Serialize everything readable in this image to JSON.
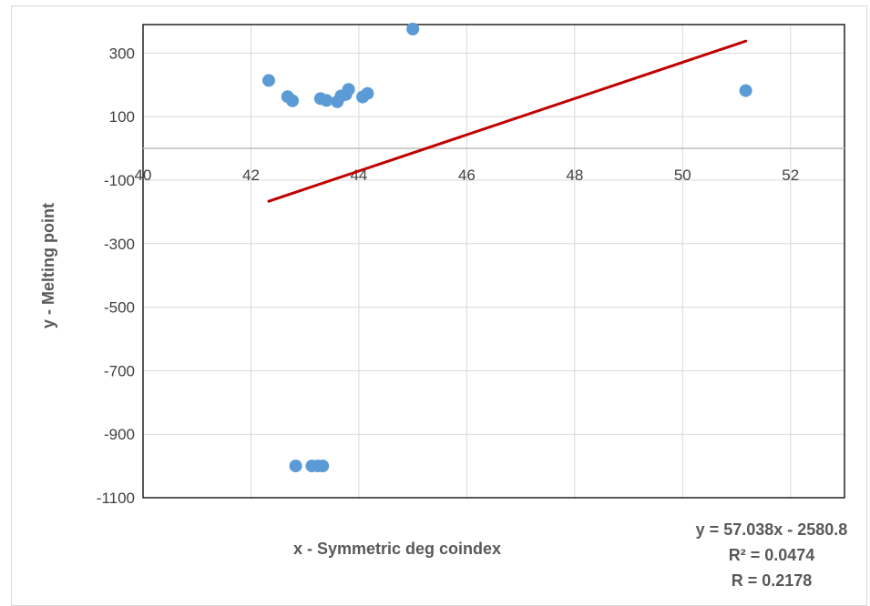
{
  "chart_data": {
    "type": "scatter",
    "xlabel": "x - Symmetric deg coindex",
    "ylabel": "y - Melting point",
    "xlim": [
      40,
      53
    ],
    "ylim": [
      -1100,
      390
    ],
    "x_ticks": [
      40,
      42,
      44,
      46,
      48,
      50,
      52
    ],
    "y_ticks": [
      300,
      100,
      -100,
      -300,
      -500,
      -700,
      -900,
      -1100
    ],
    "grid": true,
    "series": [
      {
        "color": "#5b9bd5",
        "points": [
          [
            42.33,
            214
          ],
          [
            42.68,
            163
          ],
          [
            42.77,
            150
          ],
          [
            43.29,
            157
          ],
          [
            43.4,
            151
          ],
          [
            43.6,
            147
          ],
          [
            43.67,
            165
          ],
          [
            43.76,
            170
          ],
          [
            43.81,
            186
          ],
          [
            44.07,
            162
          ],
          [
            44.16,
            173
          ],
          [
            45.0,
            376
          ],
          [
            51.17,
            182
          ],
          [
            42.83,
            -1000
          ],
          [
            43.13,
            -1000
          ],
          [
            43.24,
            -1000
          ],
          [
            43.33,
            -1000
          ]
        ]
      }
    ],
    "trendline": {
      "color": "#c00000",
      "x_range": [
        42.33,
        51.17
      ],
      "slope": 57.038,
      "intercept": -2580.8
    },
    "annotations": {
      "equation": "y = 57.038x - 2580.8",
      "r_squared": "R² = 0.0474",
      "r": "R = 0.2178"
    }
  }
}
